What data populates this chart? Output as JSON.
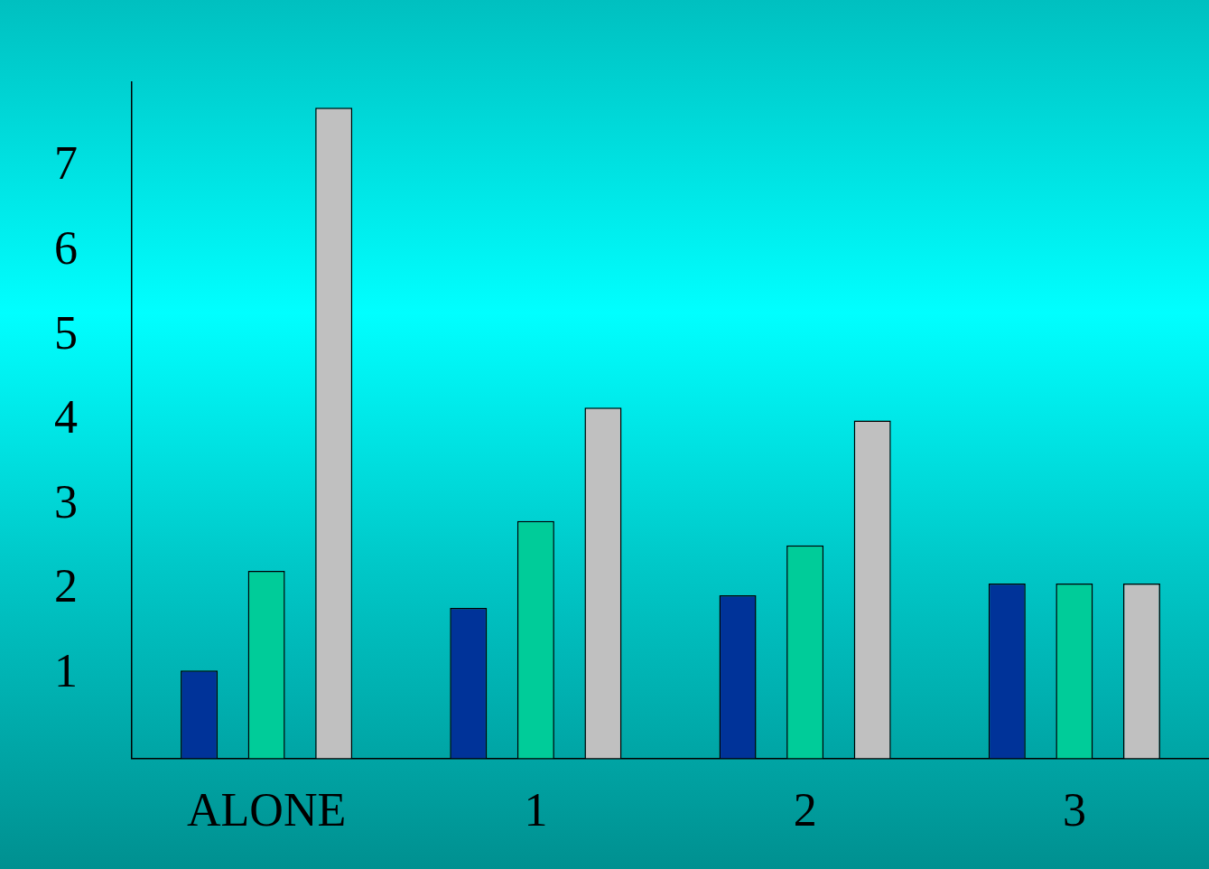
{
  "chart_data": {
    "type": "bar",
    "categories": [
      "ALONE",
      "1",
      "2",
      "3"
    ],
    "series": [
      {
        "color": "#003399",
        "values": [
          1.04,
          1.78,
          1.93,
          2.07
        ]
      },
      {
        "color": "#00cc99",
        "values": [
          2.22,
          2.81,
          2.52,
          2.07
        ]
      },
      {
        "color": "#c0c0c0",
        "values": [
          7.7,
          4.15,
          4.0,
          2.07
        ]
      }
    ],
    "ylim": [
      0,
      8
    ],
    "yticks": [
      1,
      2,
      3,
      4,
      5,
      6,
      7
    ],
    "grid": false,
    "legend": false
  }
}
